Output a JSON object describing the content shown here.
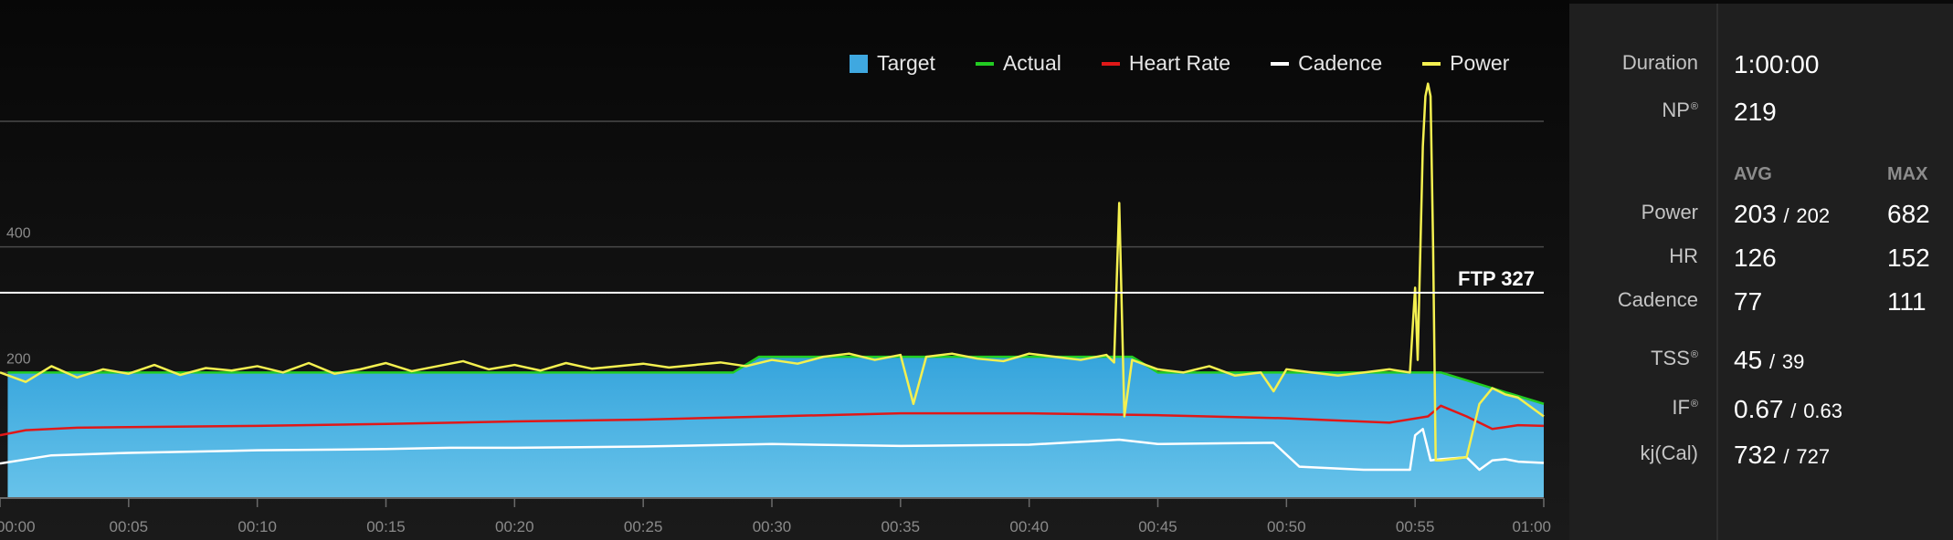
{
  "legend": [
    {
      "label": "Target",
      "color": "#3fa8e0",
      "shape": "square"
    },
    {
      "label": "Actual",
      "color": "#22cc22",
      "shape": "line"
    },
    {
      "label": "Heart Rate",
      "color": "#e01818",
      "shape": "line"
    },
    {
      "label": "Cadence",
      "color": "#ffffff",
      "shape": "line"
    },
    {
      "label": "Power",
      "color": "#f4f050",
      "shape": "line"
    }
  ],
  "ftp_label": "FTP 327",
  "stats": {
    "duration_label": "Duration",
    "duration_value": "1:00:00",
    "np_label": "NP",
    "np_value": "219",
    "avg_header": "AVG",
    "max_header": "MAX",
    "power_label": "Power",
    "power_avg": "203",
    "power_avg2": "202",
    "power_max": "682",
    "hr_label": "HR",
    "hr_avg": "126",
    "hr_max": "152",
    "cadence_label": "Cadence",
    "cadence_avg": "77",
    "cadence_max": "111",
    "tss_label": "TSS",
    "tss_value": "45",
    "tss_value2": "39",
    "if_label": "IF",
    "if_value": "0.67",
    "if_value2": "0.63",
    "kj_label": "kj(Cal)",
    "kj_value": "732",
    "kj_value2": "727",
    "registered": "®",
    "slash": "/"
  },
  "chart_data": {
    "type": "line",
    "x_unit": "minutes",
    "xlim": [
      0,
      60
    ],
    "ylim": [
      0,
      600
    ],
    "y_gridlines": [
      0,
      200,
      400,
      600
    ],
    "y_tick_labels": [
      {
        "value": 200,
        "label": "200"
      },
      {
        "value": 400,
        "label": "400"
      }
    ],
    "x_tick_labels": [
      "00:00",
      "00:05",
      "00:10",
      "00:15",
      "00:20",
      "00:25",
      "00:30",
      "00:35",
      "00:40",
      "00:45",
      "00:50",
      "00:55",
      "01:00"
    ],
    "ftp": 327,
    "series": [
      {
        "name": "Target",
        "x": [
          0,
          0.3,
          0.3,
          28.5,
          29.5,
          44,
          45,
          55,
          56,
          58,
          60
        ],
        "y": [
          0,
          0,
          200,
          200,
          225,
          225,
          200,
          200,
          200,
          175,
          150
        ]
      },
      {
        "name": "Actual",
        "x": [
          0.3,
          28.5,
          29.5,
          44,
          45,
          55,
          56,
          58,
          60
        ],
        "y": [
          200,
          200,
          225,
          225,
          200,
          200,
          200,
          175,
          150
        ]
      },
      {
        "name": "Heart Rate",
        "x": [
          0,
          1,
          3,
          5,
          10,
          15,
          20,
          25,
          30,
          35,
          40,
          45,
          50,
          54,
          55.5,
          56,
          57,
          58,
          59,
          60
        ],
        "y": [
          100,
          108,
          112,
          113,
          115,
          118,
          122,
          125,
          130,
          135,
          135,
          132,
          127,
          120,
          130,
          147,
          130,
          110,
          116,
          115
        ]
      },
      {
        "name": "Cadence",
        "x": [
          0,
          2,
          5,
          10,
          15,
          17.5,
          20,
          25,
          30,
          35,
          40,
          43.5,
          45,
          49.5,
          50.5,
          53,
          54.8,
          55,
          55.3,
          55.6,
          56,
          57,
          57.5,
          58,
          58.5,
          59,
          60
        ],
        "y": [
          55,
          68,
          72,
          76,
          78,
          80,
          80,
          82,
          86,
          83,
          85,
          93,
          86,
          88,
          50,
          45,
          45,
          100,
          110,
          60,
          62,
          65,
          45,
          60,
          62,
          58,
          56
        ]
      },
      {
        "name": "Power",
        "x": [
          0,
          1,
          2,
          3,
          4,
          5,
          6,
          7,
          8,
          9,
          10,
          11,
          12,
          13,
          14,
          15,
          16,
          17,
          18,
          19,
          20,
          21,
          22,
          23,
          24,
          25,
          26,
          27,
          28,
          29,
          30,
          31,
          32,
          33,
          34,
          35,
          35.5,
          36,
          37,
          38,
          39,
          40,
          41,
          42,
          43,
          43.3,
          43.5,
          43.7,
          44,
          45,
          46,
          47,
          48,
          49,
          49.5,
          50,
          51,
          52,
          53,
          54,
          54.8,
          55,
          55.1,
          55.3,
          55.4,
          55.5,
          55.6,
          55.7,
          55.8,
          56,
          57,
          57.5,
          58,
          58.5,
          59,
          60
        ],
        "y": [
          200,
          185,
          210,
          192,
          205,
          198,
          212,
          196,
          207,
          203,
          210,
          200,
          215,
          198,
          205,
          215,
          202,
          210,
          218,
          205,
          212,
          203,
          215,
          206,
          210,
          214,
          208,
          212,
          216,
          210,
          220,
          214,
          225,
          230,
          220,
          228,
          150,
          225,
          230,
          222,
          218,
          230,
          225,
          220,
          228,
          216,
          470,
          130,
          220,
          205,
          200,
          210,
          195,
          200,
          170,
          205,
          200,
          195,
          200,
          205,
          200,
          335,
          220,
          560,
          640,
          660,
          640,
          400,
          60,
          60,
          65,
          150,
          175,
          165,
          160,
          130
        ]
      }
    ]
  }
}
